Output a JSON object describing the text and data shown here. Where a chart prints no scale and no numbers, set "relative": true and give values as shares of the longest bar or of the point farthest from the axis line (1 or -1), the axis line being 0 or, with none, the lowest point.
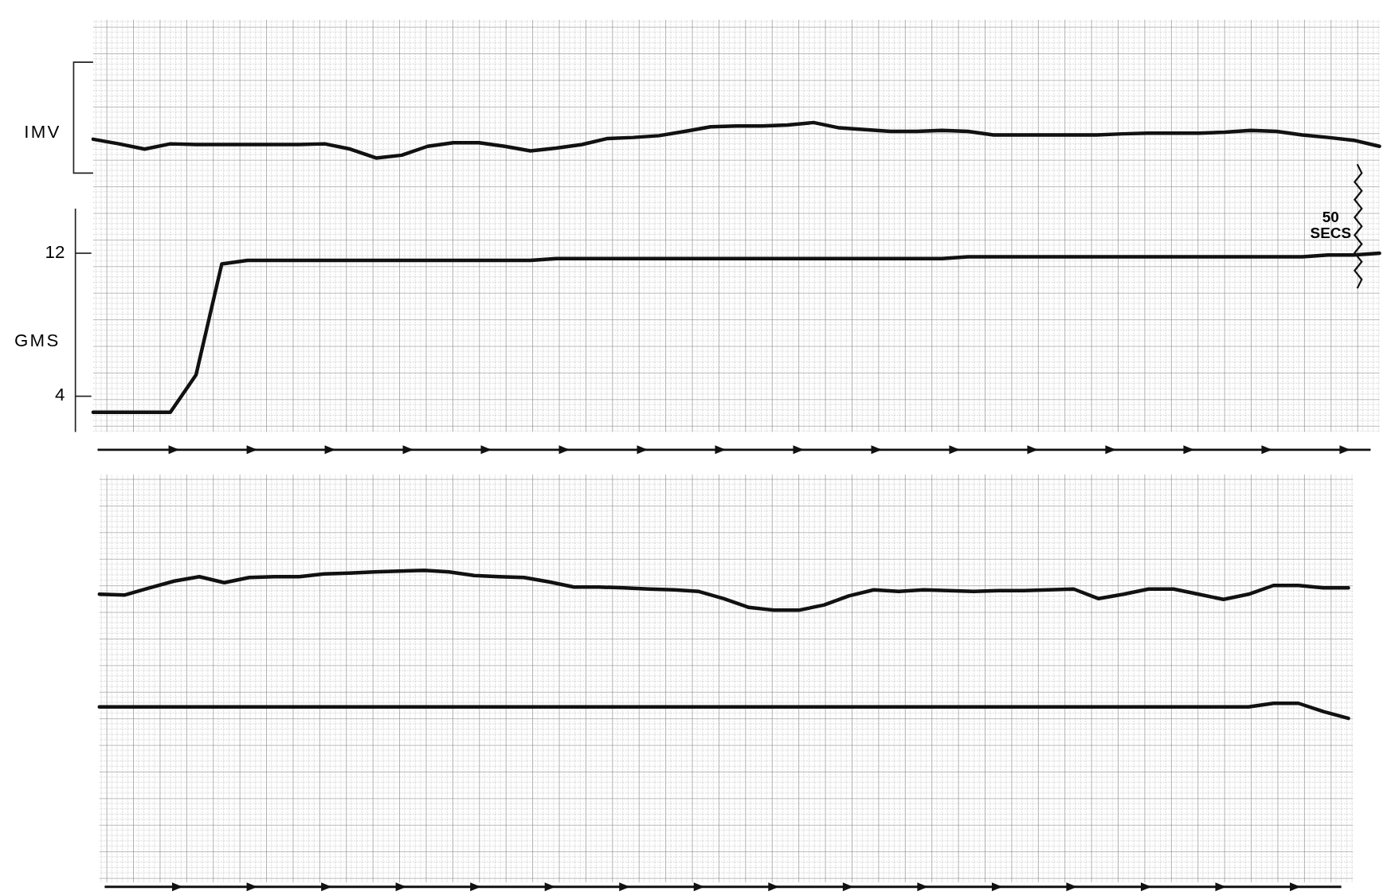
{
  "chart_data": [
    {
      "type": "line",
      "ylabel": "IMV",
      "relative": true,
      "color": "#111111",
      "categories": [
        null,
        null,
        null,
        null,
        null,
        null,
        null,
        null,
        null,
        null,
        null,
        null,
        null,
        null,
        null,
        null,
        null,
        null,
        null,
        null,
        null,
        null,
        null,
        null,
        null,
        null,
        null,
        null,
        null,
        null,
        null,
        null,
        null,
        null,
        null,
        null,
        null,
        null,
        null,
        null,
        null,
        null,
        null,
        null,
        null,
        null,
        null,
        null,
        null,
        null,
        null
      ],
      "values": [
        0.53,
        0.4,
        0.25,
        0.4,
        0.38,
        0.38,
        0.38,
        0.38,
        0.38,
        0.4,
        0.25,
        0,
        0.08,
        0.33,
        0.43,
        0.43,
        0.33,
        0.2,
        0.28,
        0.38,
        0.55,
        0.58,
        0.63,
        0.75,
        0.88,
        0.9,
        0.9,
        0.93,
        1,
        0.85,
        0.8,
        0.75,
        0.75,
        0.78,
        0.75,
        0.65,
        0.65,
        0.65,
        0.65,
        0.65,
        0.68,
        0.7,
        0.7,
        0.7,
        0.73,
        0.78,
        0.75,
        0.65,
        0.58,
        0.5,
        0.33
      ]
    },
    {
      "type": "line",
      "ylabel": "GMS",
      "color": "#111111",
      "ylim": [
        2,
        14.5
      ],
      "yticks": [
        4,
        12
      ],
      "tick_labels": "y",
      "annotations": [
        "50 SECS"
      ],
      "categories": [
        null,
        null,
        null,
        null,
        null,
        null,
        null,
        null,
        null,
        null,
        null,
        null,
        null,
        null,
        null,
        null,
        null,
        null,
        null,
        null,
        null,
        null,
        null,
        null,
        null,
        null,
        null,
        null,
        null,
        null,
        null,
        null,
        null,
        null,
        null,
        null,
        null,
        null,
        null,
        null,
        null,
        null,
        null,
        null,
        null,
        null,
        null,
        null,
        null,
        null,
        null
      ],
      "values": [
        3.1,
        3.1,
        3.1,
        3.1,
        5.2,
        11.4,
        11.6,
        11.6,
        11.6,
        11.6,
        11.6,
        11.6,
        11.6,
        11.6,
        11.6,
        11.6,
        11.6,
        11.6,
        11.7,
        11.7,
        11.7,
        11.7,
        11.7,
        11.7,
        11.7,
        11.7,
        11.7,
        11.7,
        11.7,
        11.7,
        11.7,
        11.7,
        11.7,
        11.7,
        11.8,
        11.8,
        11.8,
        11.8,
        11.8,
        11.8,
        11.8,
        11.8,
        11.8,
        11.8,
        11.8,
        11.8,
        11.8,
        11.8,
        11.9,
        11.9,
        12
      ]
    },
    {
      "type": "line",
      "relative": true,
      "color": "#111111",
      "categories": [
        null,
        null,
        null,
        null,
        null,
        null,
        null,
        null,
        null,
        null,
        null,
        null,
        null,
        null,
        null,
        null,
        null,
        null,
        null,
        null,
        null,
        null,
        null,
        null,
        null,
        null,
        null,
        null,
        null,
        null,
        null,
        null,
        null,
        null,
        null,
        null,
        null,
        null,
        null,
        null,
        null,
        null,
        null,
        null,
        null,
        null,
        null,
        null,
        null,
        null,
        null
      ],
      "values": [
        0.4,
        0.38,
        0.56,
        0.73,
        0.84,
        0.69,
        0.82,
        0.84,
        0.84,
        0.91,
        0.93,
        0.96,
        0.98,
        1,
        0.96,
        0.87,
        0.84,
        0.82,
        0.71,
        0.58,
        0.58,
        0.56,
        0.53,
        0.51,
        0.47,
        0.29,
        0.07,
        0,
        0,
        0.13,
        0.36,
        0.51,
        0.47,
        0.51,
        0.49,
        0.47,
        0.49,
        0.49,
        0.51,
        0.53,
        0.29,
        0.4,
        0.53,
        0.53,
        0.4,
        0.27,
        0.4,
        0.62,
        0.62,
        0.56,
        0.56
      ]
    },
    {
      "type": "line",
      "relative": true,
      "color": "#111111",
      "categories": [
        null,
        null,
        null,
        null,
        null,
        null,
        null,
        null,
        null,
        null,
        null,
        null,
        null,
        null,
        null,
        null,
        null,
        null,
        null,
        null,
        null,
        null,
        null,
        null,
        null,
        null,
        null,
        null,
        null,
        null,
        null,
        null,
        null,
        null,
        null,
        null,
        null,
        null,
        null,
        null,
        null,
        null,
        null,
        null,
        null,
        null,
        null,
        null,
        null,
        null,
        null
      ],
      "values": [
        0.76,
        0.76,
        0.76,
        0.76,
        0.76,
        0.76,
        0.76,
        0.76,
        0.76,
        0.76,
        0.76,
        0.76,
        0.76,
        0.76,
        0.76,
        0.76,
        0.76,
        0.76,
        0.76,
        0.76,
        0.76,
        0.76,
        0.76,
        0.76,
        0.76,
        0.76,
        0.76,
        0.76,
        0.76,
        0.76,
        0.76,
        0.76,
        0.76,
        0.76,
        0.76,
        0.76,
        0.76,
        0.76,
        0.76,
        0.76,
        0.76,
        0.76,
        0.76,
        0.76,
        0.76,
        0.76,
        0.76,
        1,
        1,
        0.45,
        0
      ]
    }
  ]
}
